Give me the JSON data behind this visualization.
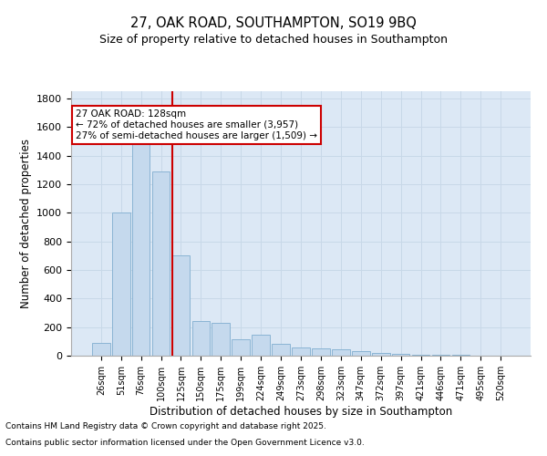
{
  "title_line1": "27, OAK ROAD, SOUTHAMPTON, SO19 9BQ",
  "title_line2": "Size of property relative to detached houses in Southampton",
  "xlabel": "Distribution of detached houses by size in Southampton",
  "ylabel": "Number of detached properties",
  "bar_color": "#c5d9ed",
  "bar_edge_color": "#8ab4d4",
  "grid_color": "#c8d8e8",
  "background_color": "#dce8f5",
  "annotation_box_color": "#cc0000",
  "annotation_text_line1": "27 OAK ROAD: 128sqm",
  "annotation_text_line2": "← 72% of detached houses are smaller (3,957)",
  "annotation_text_line3": "27% of semi-detached houses are larger (1,509) →",
  "vline_color": "#cc0000",
  "categories": [
    "26sqm",
    "51sqm",
    "76sqm",
    "100sqm",
    "125sqm",
    "150sqm",
    "175sqm",
    "199sqm",
    "224sqm",
    "249sqm",
    "273sqm",
    "298sqm",
    "323sqm",
    "347sqm",
    "372sqm",
    "397sqm",
    "421sqm",
    "446sqm",
    "471sqm",
    "495sqm",
    "520sqm"
  ],
  "values": [
    90,
    1000,
    1510,
    1290,
    700,
    245,
    230,
    115,
    145,
    85,
    60,
    48,
    45,
    30,
    18,
    13,
    5,
    4,
    4,
    3,
    0
  ],
  "vline_index": 3.55,
  "ylim": [
    0,
    1850
  ],
  "yticks": [
    0,
    200,
    400,
    600,
    800,
    1000,
    1200,
    1400,
    1600,
    1800
  ],
  "footnote1": "Contains HM Land Registry data © Crown copyright and database right 2025.",
  "footnote2": "Contains public sector information licensed under the Open Government Licence v3.0."
}
